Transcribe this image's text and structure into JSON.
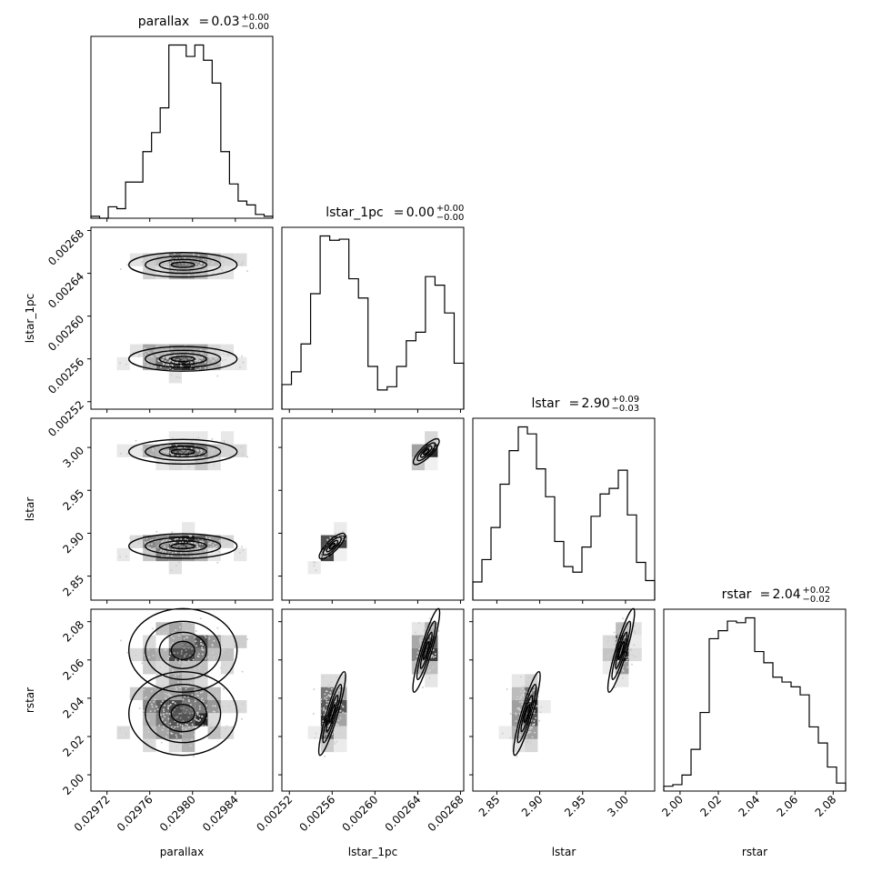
{
  "chart_data": {
    "type": "corner",
    "parameters": [
      "parallax",
      "lstar_1pc",
      "lstar",
      "rstar"
    ],
    "titles": [
      {
        "param": "parallax",
        "median": "0.03",
        "plus": "+0.00",
        "minus": "−0.00"
      },
      {
        "param": "lstar_1pc",
        "median": "0.00",
        "plus": "+0.00",
        "minus": "−0.00"
      },
      {
        "param": "lstar",
        "median": "2.90",
        "plus": "+0.09",
        "minus": "−0.03"
      },
      {
        "param": "rstar",
        "median": "2.04",
        "plus": "+0.02",
        "minus": "−0.02"
      }
    ],
    "xlabels": [
      "parallax",
      "lstar_1pc",
      "lstar",
      "rstar"
    ],
    "ylabels": [
      "",
      "lstar_1pc",
      "lstar",
      "rstar"
    ],
    "ranges": [
      [
        0.029705,
        0.029875
      ],
      [
        0.002513,
        0.002683
      ],
      [
        2.822,
        3.034
      ],
      [
        1.9915,
        2.0865
      ]
    ],
    "ticks": [
      [
        0.02972,
        0.02976,
        0.0298,
        0.02984
      ],
      [
        0.00252,
        0.00256,
        0.0026,
        0.00264,
        0.00268
      ],
      [
        2.85,
        2.9,
        2.95,
        3.0
      ],
      [
        2.0,
        2.02,
        2.04,
        2.06,
        2.08
      ]
    ],
    "tick_labels": [
      [
        "0.02972",
        "0.02976",
        "0.02980",
        "0.02984"
      ],
      [
        "0.00252",
        "0.00256",
        "0.00260",
        "0.00264",
        "0.00268"
      ],
      [
        "2.85",
        "2.90",
        "2.95",
        "3.00"
      ],
      [
        "2.00",
        "2.02",
        "2.04",
        "2.06",
        "2.08"
      ]
    ],
    "histograms": [
      [
        1,
        0,
        6,
        5,
        19,
        19,
        35,
        45,
        58,
        91,
        91,
        85,
        91,
        83,
        71,
        35,
        18,
        9,
        7,
        2,
        1
      ],
      [
        23,
        35,
        61,
        108,
        162,
        158,
        159,
        122,
        104,
        40,
        18,
        21,
        40,
        64,
        72,
        124,
        116,
        90,
        43
      ],
      [
        13,
        29,
        52,
        83,
        107,
        124,
        119,
        94,
        74,
        42,
        24,
        20,
        38,
        60,
        76,
        80,
        93,
        61,
        27,
        14
      ],
      [
        3,
        4,
        10,
        26,
        49,
        95,
        100,
        106,
        105,
        108,
        87,
        80,
        71,
        68,
        65,
        60,
        40,
        30,
        15,
        5
      ]
    ],
    "clusters": {
      "lstar_1pc": [
        0.00256,
        0.002648
      ],
      "lstar": [
        2.885,
        2.995
      ],
      "rstar": [
        2.032,
        2.065
      ]
    }
  }
}
